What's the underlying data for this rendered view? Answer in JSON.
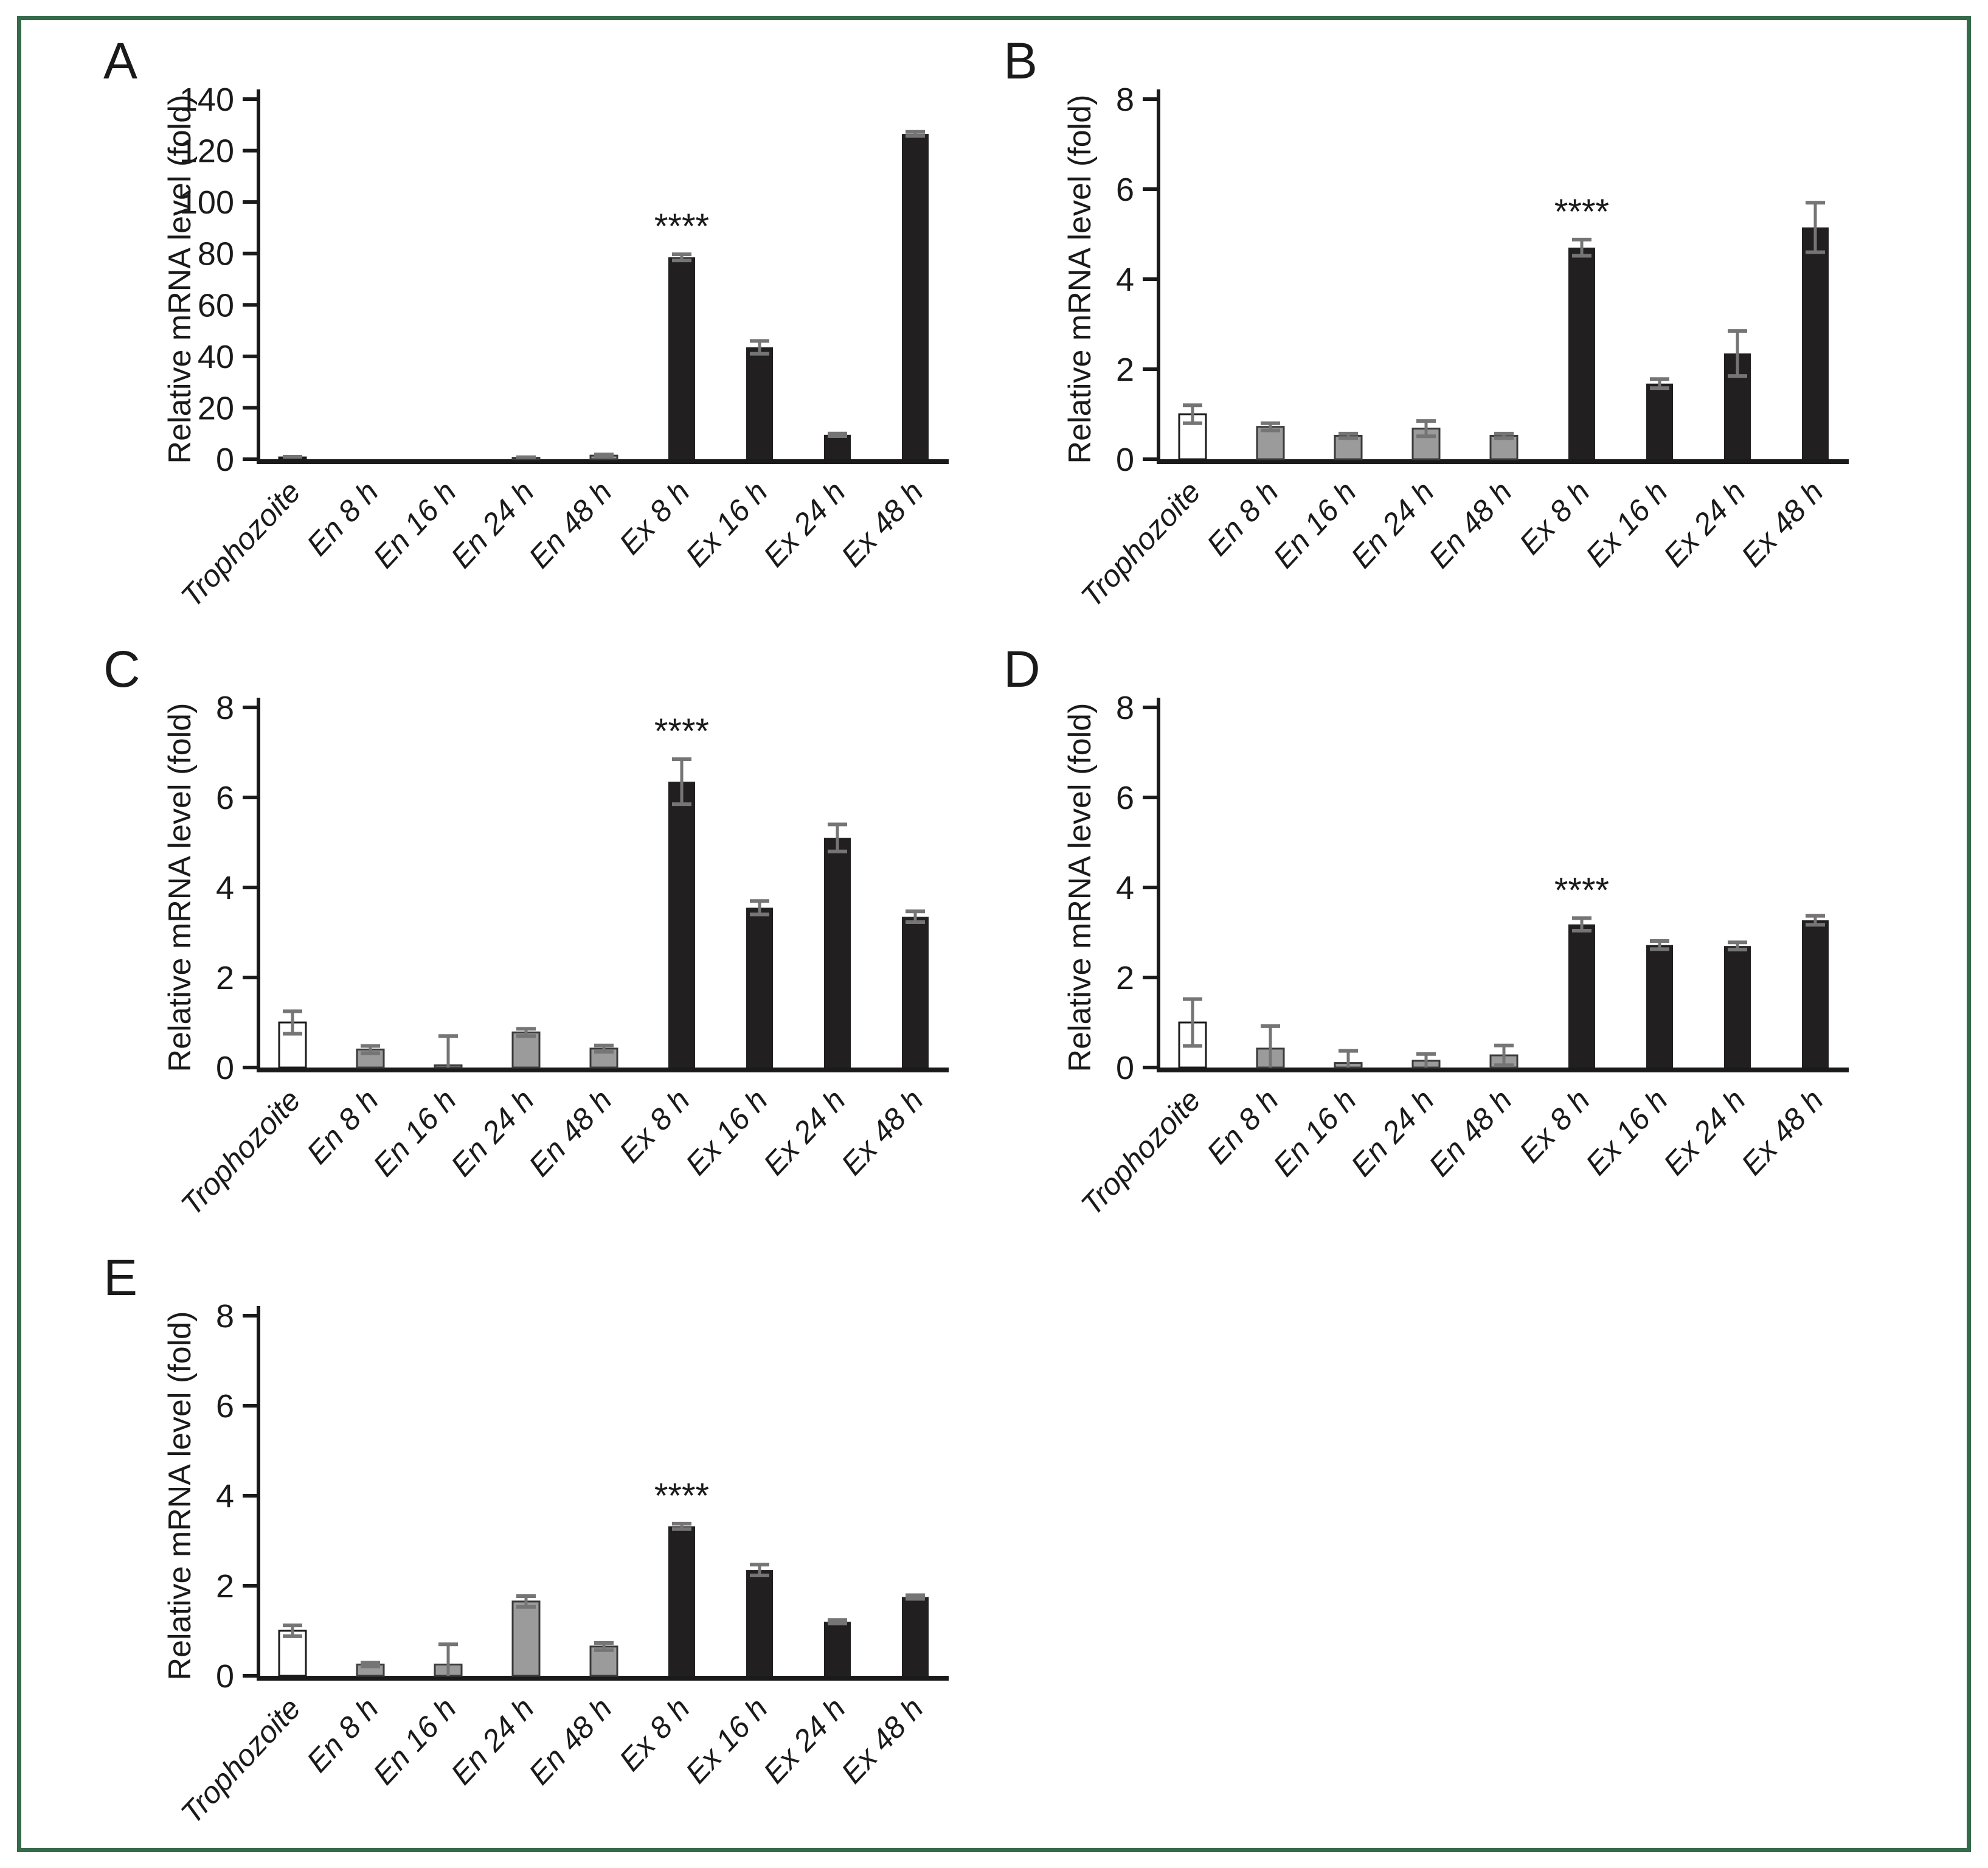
{
  "figure": {
    "background_color": "#ffffff",
    "border_color": "#356a4b",
    "axis_color": "#1a1a1a",
    "error_bar_color": "#757575",
    "significance_label": "****",
    "bar_groups": [
      "trophozoite",
      "encysting",
      "encysting",
      "encysting",
      "encysting",
      "excysted",
      "excysted",
      "excysted",
      "excysted"
    ],
    "bar_fill_by_group": {
      "trophozoite": "#ffffff",
      "encysting": "#9b9b9b",
      "excysted": "#221f20"
    },
    "bar_outline_by_group": {
      "trophozoite": "#1a1a1a",
      "encysting": "#3a3a3a",
      "excysted": "none"
    }
  },
  "chart_data": [
    {
      "panel_label": "A",
      "type": "bar",
      "ylabel": "Relative mRNA level (fold)",
      "ylim": [
        0,
        140
      ],
      "ytick_step": 20,
      "grid": false,
      "categories": [
        "Trophozoite",
        "En 8 h",
        "En 16 h",
        "En 24 h",
        "En 48 h",
        "Ex 8 h",
        "Ex 16 h",
        "Ex 24 h",
        "Ex 48 h"
      ],
      "values": [
        0.7,
        0.05,
        0.05,
        0.55,
        1.4,
        78.5,
        43.5,
        9.5,
        126.5
      ],
      "errors": [
        0.25,
        0,
        0,
        0.25,
        0.45,
        1.2,
        2.5,
        0.5,
        0.8
      ],
      "annotations": [
        {
          "text": "****",
          "category": "Ex 8 h"
        }
      ]
    },
    {
      "panel_label": "B",
      "type": "bar",
      "ylabel": "Relative mRNA level (fold)",
      "ylim": [
        0,
        8
      ],
      "ytick_step": 2,
      "grid": false,
      "categories": [
        "Trophozoite",
        "En 8 h",
        "En 16 h",
        "En 24 h",
        "En 48 h",
        "Ex 8 h",
        "Ex 16 h",
        "Ex 24 h",
        "Ex 48 h"
      ],
      "values": [
        1.0,
        0.72,
        0.52,
        0.68,
        0.52,
        4.7,
        1.68,
        2.35,
        5.15
      ],
      "errors": [
        0.2,
        0.08,
        0.05,
        0.17,
        0.05,
        0.18,
        0.1,
        0.5,
        0.55
      ],
      "annotations": [
        {
          "text": "****",
          "category": "Ex 8 h"
        }
      ]
    },
    {
      "panel_label": "C",
      "type": "bar",
      "ylabel": "Relative mRNA level (fold)",
      "ylim": [
        0,
        8
      ],
      "ytick_step": 2,
      "grid": false,
      "categories": [
        "Trophozoite",
        "En 8 h",
        "En 16 h",
        "En 24 h",
        "En 48 h",
        "Ex 8 h",
        "Ex 16 h",
        "Ex 24 h",
        "Ex 48 h"
      ],
      "values": [
        1.0,
        0.4,
        0.05,
        0.78,
        0.42,
        6.35,
        3.55,
        5.1,
        3.35
      ],
      "errors": [
        0.25,
        0.08,
        0.65,
        0.08,
        0.07,
        0.5,
        0.15,
        0.3,
        0.12
      ],
      "annotations": [
        {
          "text": "****",
          "category": "Ex 8 h"
        }
      ]
    },
    {
      "panel_label": "D",
      "type": "bar",
      "ylabel": "Relative mRNA level (fold)",
      "ylim": [
        0,
        8
      ],
      "ytick_step": 2,
      "grid": false,
      "categories": [
        "Trophozoite",
        "En 8 h",
        "En 16 h",
        "En 24 h",
        "En 48 h",
        "Ex 8 h",
        "Ex 16 h",
        "Ex 24 h",
        "Ex 48 h"
      ],
      "values": [
        1.0,
        0.42,
        0.1,
        0.15,
        0.27,
        3.18,
        2.72,
        2.7,
        3.27
      ],
      "errors": [
        0.52,
        0.5,
        0.27,
        0.15,
        0.22,
        0.14,
        0.09,
        0.08,
        0.1
      ],
      "annotations": [
        {
          "text": "****",
          "category": "Ex 8 h"
        }
      ]
    },
    {
      "panel_label": "E",
      "type": "bar",
      "ylabel": "Relative mRNA level (fold)",
      "ylim": [
        0,
        8
      ],
      "ytick_step": 2,
      "grid": false,
      "categories": [
        "Trophozoite",
        "En 8 h",
        "En 16 h",
        "En 24 h",
        "En 48 h",
        "Ex 8 h",
        "Ex 16 h",
        "Ex 24 h",
        "Ex 48 h"
      ],
      "values": [
        1.0,
        0.25,
        0.25,
        1.65,
        0.65,
        3.32,
        2.35,
        1.2,
        1.75
      ],
      "errors": [
        0.12,
        0.04,
        0.45,
        0.12,
        0.08,
        0.06,
        0.12,
        0.04,
        0.04
      ],
      "annotations": [
        {
          "text": "****",
          "category": "Ex 8 h"
        }
      ]
    }
  ]
}
